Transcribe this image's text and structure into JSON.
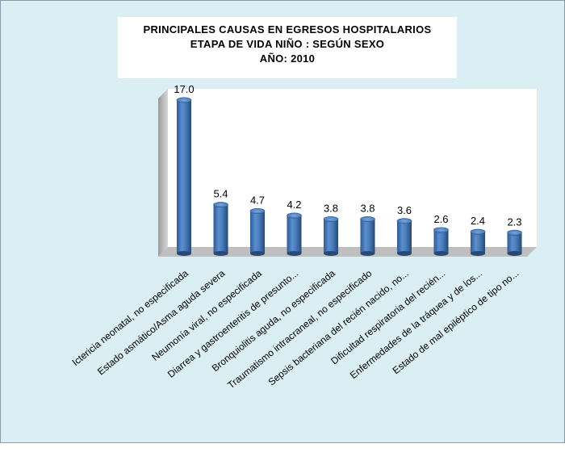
{
  "title_lines": [
    "PRINCIPALES CAUSAS EN EGRESOS HOSPITALARIOS",
    "ETAPA DE VIDA NIÑO : SEGÚN SEXO",
    "AÑO: 2010"
  ],
  "chart_data": {
    "type": "bar",
    "title": "PRINCIPALES CAUSAS EN EGRESOS HOSPITALARIOS ETAPA DE VIDA NIÑO : SEGÚN SEXO AÑO: 2010",
    "categories": [
      "Ictericia neonatal, no especificada",
      "Estado asmático/Asma aguda severa",
      "Neumonía viral, no especificada",
      "Diarrea y gastroenteritis de presunto...",
      "Bronquiolitis aguda, no especificada",
      "Traumatismo intracraneal, no especificado",
      "Sepsis bacteriana del recién nacido, no...",
      "Dificultad respiratoria del recién...",
      "Enfermedades de la tráquea y de los...",
      "Estado de mal epiléptico de tipo no..."
    ],
    "values": [
      17.0,
      5.4,
      4.7,
      4.2,
      3.8,
      3.8,
      3.6,
      2.6,
      2.4,
      2.3
    ],
    "value_labels": [
      "17.0",
      "5.4",
      "4.7",
      "4.2",
      "3.8",
      "3.8",
      "3.6",
      "2.6",
      "2.4",
      "2.3"
    ],
    "ylim": [
      0,
      18
    ],
    "grid": false,
    "legend": "none",
    "bar_color": "#4a7ebb",
    "floor_color": "#bfbfbf",
    "wall_color": "#ffffff"
  }
}
